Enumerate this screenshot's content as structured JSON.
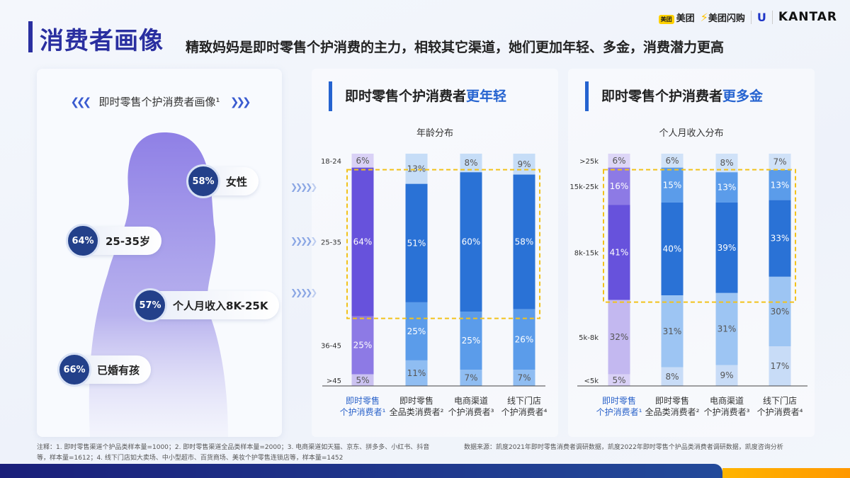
{
  "header": {
    "title": "消费者画像",
    "subtitle": "精致妈妈是即时零售个护消费的主力，相较其它渠道，她们更加年轻、多金，消费潜力更高"
  },
  "logos": {
    "meituan_badge": "美团",
    "meituan": "美团",
    "shangou": "美团闪购",
    "unilever": "U",
    "kantar": "KANTAR"
  },
  "portrait": {
    "title": "即时零售个护消费者画像¹",
    "badges": [
      {
        "value": "58%",
        "label": "女性"
      },
      {
        "value": "64%",
        "label": "25-35岁"
      },
      {
        "value": "57%",
        "label": "个人月收入8K-25K"
      },
      {
        "value": "66%",
        "label": "已婚有孩"
      }
    ]
  },
  "age_panel": {
    "heading": "即时零售个护消费者",
    "highlight": "更年轻"
  },
  "income_panel": {
    "heading": "即时零售个护消费者",
    "highlight": "更多金"
  },
  "chart_data": [
    {
      "type": "bar",
      "stacked": true,
      "title": "年龄分布",
      "categories": [
        "即时零售\n个护消费者¹",
        "即时零售\n全品类消费者²",
        "电商渠道\n个护消费者³",
        "线下门店\n个护消费者⁴"
      ],
      "series": [
        {
          "name": "18-24",
          "values": [
            6,
            13,
            8,
            9
          ]
        },
        {
          "name": "25-35",
          "values": [
            64,
            51,
            60,
            58
          ]
        },
        {
          "name": "36-45",
          "values": [
            25,
            25,
            25,
            26
          ]
        },
        {
          "name": ">45",
          "values": [
            5,
            11,
            7,
            7
          ]
        }
      ],
      "ylim": [
        0,
        100
      ],
      "unit": "%",
      "highlight_box_series": [
        "25-35"
      ]
    },
    {
      "type": "bar",
      "stacked": true,
      "title": "个人月收入分布",
      "categories": [
        "即时零售\n个护消费者¹",
        "即时零售\n全品类消费者²",
        "电商渠道\n个护消费者³",
        "线下门店\n个护消费者⁴"
      ],
      "series": [
        {
          "name": ">25k",
          "values": [
            6,
            6,
            8,
            7
          ]
        },
        {
          "name": "15k-25k",
          "values": [
            16,
            15,
            13,
            13
          ]
        },
        {
          "name": "8k-15k",
          "values": [
            41,
            40,
            39,
            33
          ]
        },
        {
          "name": "5k-8k",
          "values": [
            32,
            31,
            31,
            30
          ]
        },
        {
          "name": "<5k",
          "values": [
            5,
            8,
            9,
            17
          ]
        }
      ],
      "ylim": [
        0,
        100
      ],
      "unit": "%",
      "highlight_box_series": [
        "15k-25k",
        "8k-15k"
      ]
    }
  ],
  "colors": {
    "age_purple": [
      "#d9d1f6",
      "#6752dc",
      "#8d7ae5",
      "#cbc2f1"
    ],
    "age_blue": [
      "#c6ddf7",
      "#2a72d6",
      "#5b9cea",
      "#8fbdf2"
    ],
    "inc_purple": [
      "#ddd6f7",
      "#8d7ae5",
      "#6752dc",
      "#c3b8f0",
      "#d9d1f6"
    ],
    "inc_blue": [
      "#d0e2f8",
      "#5b9cea",
      "#2a72d6",
      "#9dc5f3",
      "#c8dcf7"
    ],
    "highlight": "#f2c21b"
  },
  "notes": {
    "left": "注释：1. 即时零售渠道个护品类样本量=1000；2. 即时零售渠道全品类样本量=2000；3. 电商渠道如天猫、京东、拼多多、小红书、抖音等，样本量=1612；4. 线下门店如大卖场、中小型超市、百货商场、美妆个护零售连锁店等，样本量=1452",
    "right": "数据来源：凯度2021年即时零售消费者调研数据，凯度2022年即时零售个护品类消费者调研数据，凯度咨询分析"
  }
}
